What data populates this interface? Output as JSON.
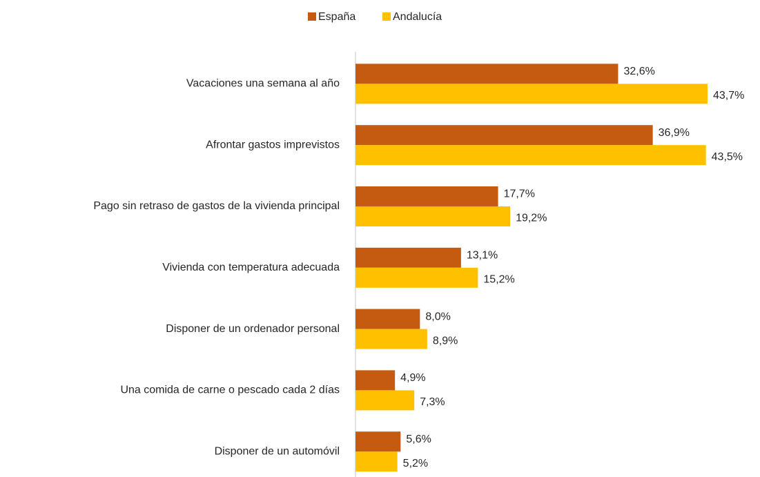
{
  "chart_data": {
    "type": "bar",
    "orientation": "horizontal",
    "categories": [
      "Vacaciones una semana al año",
      "Afrontar gastos imprevistos",
      "Pago sin retraso de gastos de la vivienda principal",
      "Vivienda con temperatura adecuada",
      "Disponer de un ordenador personal",
      "Una comida de carne o pescado  cada 2 días",
      "Disponer de un automóvil"
    ],
    "series": [
      {
        "name": "España",
        "color": "#c55a11",
        "values": [
          32.6,
          36.9,
          17.7,
          13.1,
          8.0,
          4.9,
          5.6
        ],
        "value_labels": [
          "32,6%",
          "36,9%",
          "17,7%",
          "13,1%",
          "8,0%",
          "4,9%",
          "5,6%"
        ]
      },
      {
        "name": "Andalucía",
        "color": "#ffc000",
        "values": [
          43.7,
          43.5,
          19.2,
          15.2,
          8.9,
          7.3,
          5.2
        ],
        "value_labels": [
          "43,7%",
          "43,5%",
          "19,2%",
          "15,2%",
          "8,9%",
          "7,3%",
          "5,2%"
        ]
      }
    ],
    "legend": "top"
  }
}
